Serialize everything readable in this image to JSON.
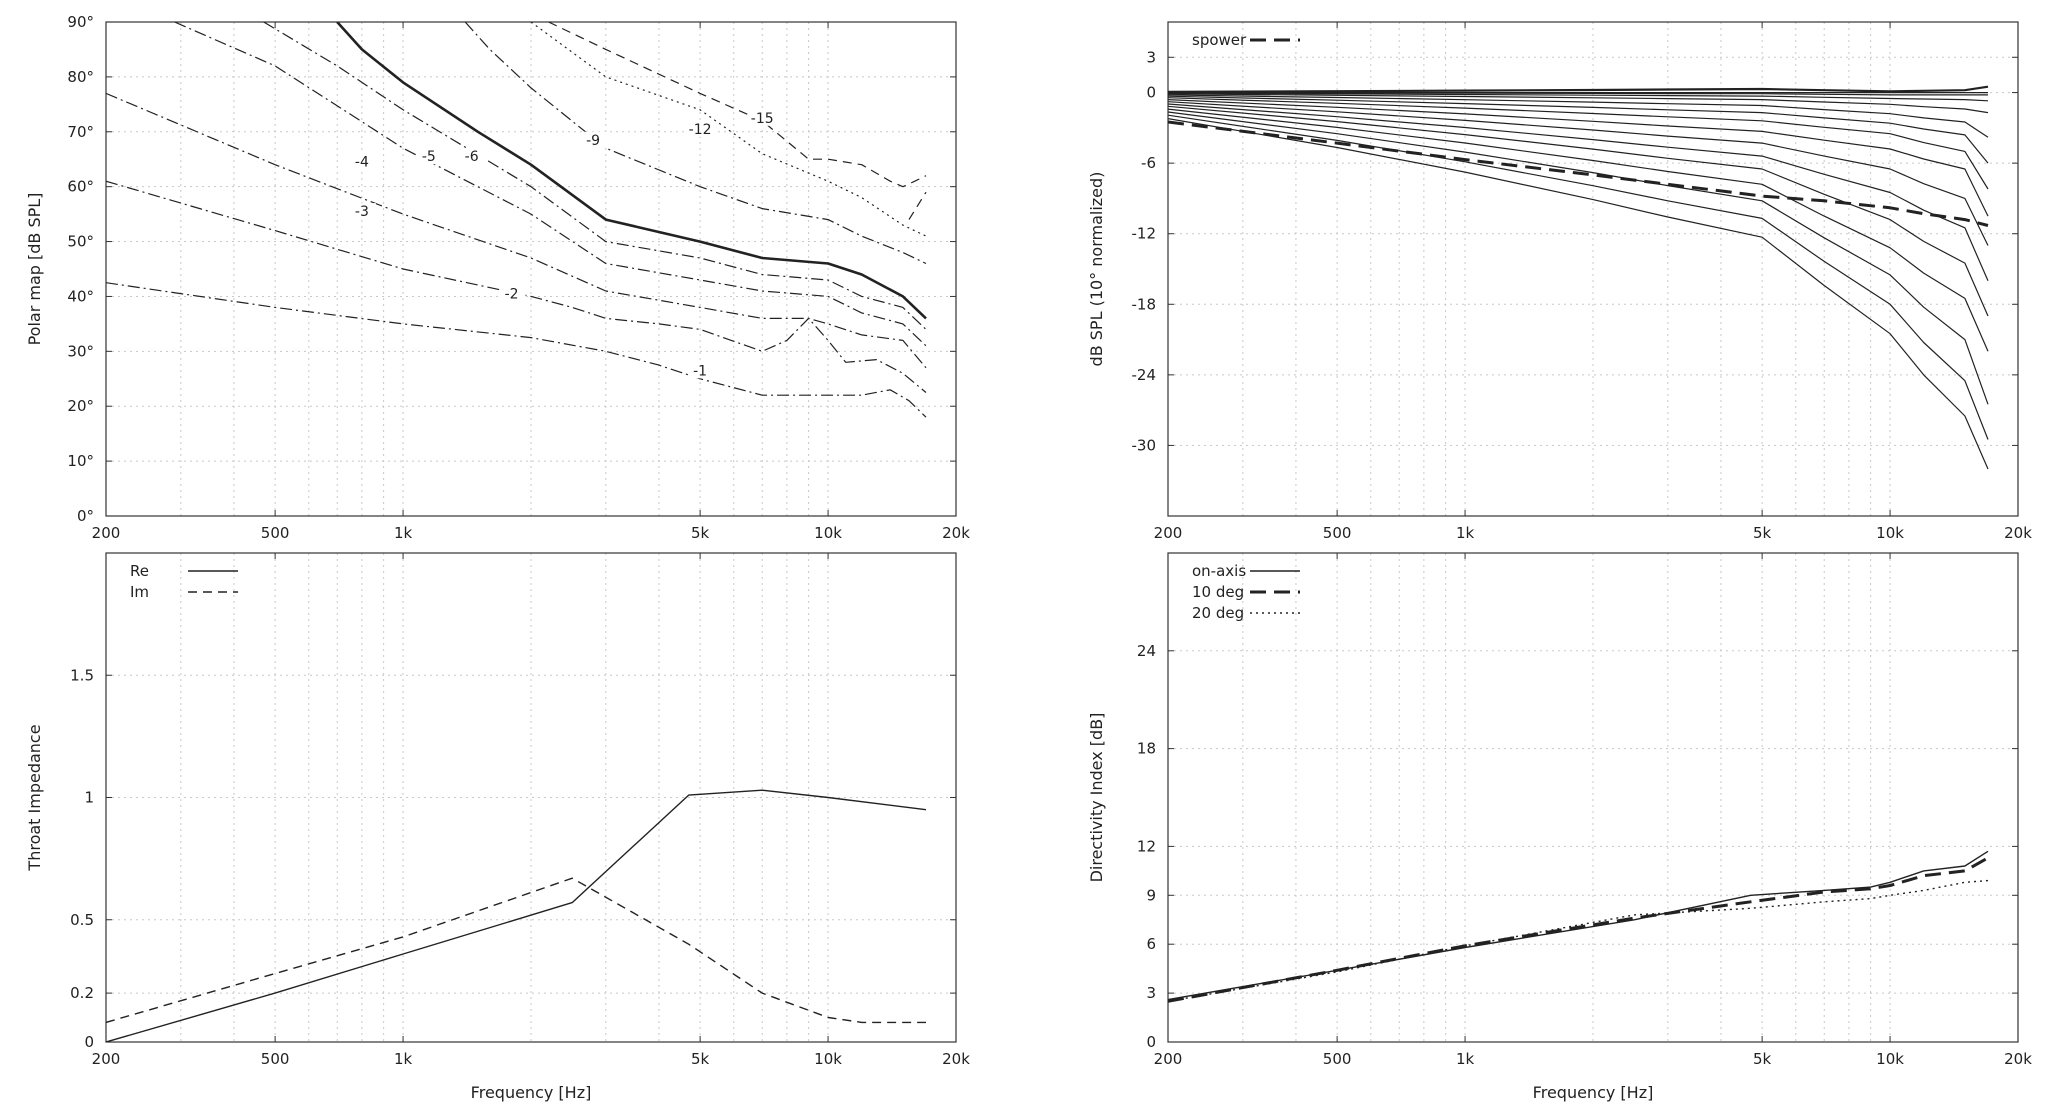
{
  "chart_data": [
    {
      "id": "polar-map",
      "type": "line",
      "xscale": "log",
      "xlim": [
        200,
        20000
      ],
      "ylim": [
        0,
        90
      ],
      "xticks": [
        200,
        500,
        1000,
        5000,
        10000,
        20000
      ],
      "xtick_labels": [
        "200",
        "500",
        "1k",
        "5k",
        "10k",
        "20k"
      ],
      "yticks": [
        0,
        10,
        20,
        30,
        40,
        50,
        60,
        70,
        80,
        90
      ],
      "ytick_labels": [
        "0°",
        "10°",
        "20°",
        "30°",
        "40°",
        "50°",
        "60°",
        "70°",
        "80°",
        "90°"
      ],
      "xlabel": "",
      "ylabel": "Polar map [dB SPL]",
      "grid": true,
      "series": [
        {
          "label": "-1",
          "style": "dashdot",
          "width": 1.2,
          "label_at": [
            5000,
            26
          ],
          "points": [
            [
              200,
              42.5
            ],
            [
              500,
              38
            ],
            [
              1000,
              35
            ],
            [
              2000,
              32.5
            ],
            [
              3000,
              30
            ],
            [
              4000,
              27.5
            ],
            [
              5000,
              25
            ],
            [
              7000,
              22
            ],
            [
              10000,
              22
            ],
            [
              12000,
              22
            ],
            [
              14000,
              23
            ],
            [
              15500,
              21
            ],
            [
              17000,
              18
            ]
          ]
        },
        {
          "label": "-2",
          "style": "dashdot",
          "width": 1.2,
          "label_at": [
            1800,
            40
          ],
          "points": [
            [
              200,
              61
            ],
            [
              500,
              52
            ],
            [
              1000,
              45
            ],
            [
              2000,
              40
            ],
            [
              2500,
              38
            ],
            [
              3000,
              36
            ],
            [
              4000,
              35
            ],
            [
              5000,
              34
            ],
            [
              7000,
              30
            ],
            [
              8000,
              32
            ],
            [
              9000,
              36
            ],
            [
              10000,
              32
            ],
            [
              11000,
              28
            ],
            [
              13000,
              28.5
            ],
            [
              15000,
              26
            ],
            [
              17000,
              22.5
            ]
          ]
        },
        {
          "label": "-3",
          "style": "dashdot",
          "width": 1.2,
          "label_at": [
            800,
            55
          ],
          "points": [
            [
              200,
              77
            ],
            [
              500,
              64
            ],
            [
              1000,
              55
            ],
            [
              2000,
              47
            ],
            [
              3000,
              41
            ],
            [
              5000,
              38
            ],
            [
              7000,
              36
            ],
            [
              9000,
              36
            ],
            [
              10000,
              35
            ],
            [
              12000,
              33
            ],
            [
              15000,
              32
            ],
            [
              17000,
              27
            ]
          ]
        },
        {
          "label": "-4",
          "style": "dashdot",
          "width": 1.2,
          "label_at": [
            800,
            64
          ],
          "points": [
            [
              290,
              90
            ],
            [
              500,
              82
            ],
            [
              1000,
              67
            ],
            [
              2000,
              55
            ],
            [
              3000,
              46
            ],
            [
              5000,
              43
            ],
            [
              7000,
              41
            ],
            [
              10000,
              40
            ],
            [
              12000,
              37
            ],
            [
              15000,
              35
            ],
            [
              17000,
              31
            ]
          ]
        },
        {
          "label": "-5",
          "style": "dashdot",
          "width": 1.2,
          "label_at": [
            1150,
            65
          ],
          "points": [
            [
              470,
              90
            ],
            [
              700,
              82
            ],
            [
              1000,
              74
            ],
            [
              2000,
              60
            ],
            [
              3000,
              50
            ],
            [
              5000,
              47
            ],
            [
              7000,
              44
            ],
            [
              10000,
              43
            ],
            [
              12000,
              40
            ],
            [
              15000,
              38
            ],
            [
              17000,
              34
            ]
          ]
        },
        {
          "label": "-6",
          "style": "solid",
          "width": 2.6,
          "label_at": [
            1450,
            65
          ],
          "points": [
            [
              700,
              90
            ],
            [
              800,
              85
            ],
            [
              1000,
              79
            ],
            [
              1500,
              70
            ],
            [
              2000,
              64
            ],
            [
              3000,
              54
            ],
            [
              5000,
              50
            ],
            [
              7000,
              47
            ],
            [
              10000,
              46
            ],
            [
              12000,
              44
            ],
            [
              15000,
              40
            ],
            [
              17000,
              36
            ]
          ]
        },
        {
          "label": "-9",
          "style": "dashdot",
          "width": 1.2,
          "label_at": [
            2800,
            68
          ],
          "points": [
            [
              1400,
              90
            ],
            [
              1600,
              85
            ],
            [
              2000,
              78
            ],
            [
              3000,
              67
            ],
            [
              5000,
              60
            ],
            [
              7000,
              56
            ],
            [
              10000,
              54
            ],
            [
              12000,
              51
            ],
            [
              15000,
              48
            ],
            [
              17000,
              46
            ]
          ]
        },
        {
          "label": "-12",
          "style": "dashed",
          "width": 1.2,
          "label_at": [
            5000,
            70
          ],
          "points": [
            [
              2200,
              90
            ],
            [
              3000,
              85
            ],
            [
              5000,
              77
            ],
            [
              7000,
              72
            ],
            [
              9000,
              65
            ],
            [
              10000,
              65
            ],
            [
              12000,
              64
            ],
            [
              14000,
              61
            ],
            [
              15000,
              60
            ],
            [
              16000,
              61
            ],
            [
              17000,
              62
            ]
          ]
        },
        {
          "label": "-15",
          "style": "dotted",
          "width": 1.2,
          "label_at": [
            7000,
            72
          ],
          "points": [
            [
              2000,
              90
            ],
            [
              3000,
              80
            ],
            [
              5000,
              74
            ],
            [
              7000,
              66
            ],
            [
              10000,
              61
            ],
            [
              12000,
              58
            ],
            [
              15000,
              53
            ],
            [
              17000,
              51
            ]
          ]
        },
        {
          "label": "",
          "style": "dashed",
          "width": 1.2,
          "points": [
            [
              15500,
              54
            ],
            [
              17000,
              59
            ]
          ]
        }
      ]
    },
    {
      "id": "normalized-spl",
      "type": "line",
      "xscale": "log",
      "xlim": [
        200,
        20000
      ],
      "ylim": [
        -36,
        6
      ],
      "xticks": [
        200,
        500,
        1000,
        5000,
        10000,
        20000
      ],
      "xtick_labels": [
        "200",
        "500",
        "1k",
        "5k",
        "10k",
        "20k"
      ],
      "yticks": [
        3,
        0,
        -6,
        -12,
        -18,
        -24,
        -30
      ],
      "ytick_labels": [
        "3",
        "0",
        "-6",
        "-12",
        "-18",
        "-24",
        "-30"
      ],
      "xlabel": "",
      "ylabel": "dB SPL (10° normalized)",
      "grid": true,
      "legend": {
        "position": "top-left",
        "entries": [
          {
            "label": "spower",
            "style": "dashed-bold"
          }
        ]
      },
      "spower": [
        [
          200,
          -2.5
        ],
        [
          500,
          -4.3
        ],
        [
          1000,
          -5.7
        ],
        [
          2000,
          -7
        ],
        [
          3000,
          -7.8
        ],
        [
          5000,
          -8.8
        ],
        [
          7000,
          -9.2
        ],
        [
          10000,
          -9.8
        ],
        [
          12000,
          -10.3
        ],
        [
          15000,
          -10.8
        ],
        [
          17000,
          -11.3
        ]
      ],
      "series": [
        {
          "v5k": 0.3,
          "v10k": 0.1,
          "v15k": 0.2,
          "end": 0.5,
          "width": 2.2
        },
        {
          "v5k": 0,
          "v10k": 0,
          "v15k": 0,
          "end": 0,
          "width": 1.2
        },
        {
          "v5k": -0.1,
          "v10k": -0.2,
          "v15k": -0.2,
          "end": -0.2,
          "width": 1.2
        },
        {
          "v5k": -0.3,
          "v10k": -0.5,
          "v15k": -0.6,
          "end": -0.7,
          "width": 1.2
        },
        {
          "v5k": -0.6,
          "v10k": -1,
          "v15k": -1.4,
          "end": -1.7,
          "width": 1.2
        },
        {
          "v5k": -1.1,
          "v10k": -1.8,
          "v15k": -2.5,
          "end": -3.8,
          "width": 1.2
        },
        {
          "v5k": -1.7,
          "v10k": -2.6,
          "v15k": -3.6,
          "end": -6,
          "width": 1.2
        },
        {
          "v5k": -2.4,
          "v10k": -3.5,
          "v15k": -5,
          "end": -8.2,
          "width": 1.2
        },
        {
          "v5k": -3.3,
          "v10k": -4.8,
          "v15k": -6.5,
          "end": -10.5,
          "width": 1.2
        },
        {
          "v5k": -4.3,
          "v10k": -6.5,
          "v15k": -9,
          "end": -13,
          "width": 1.2
        },
        {
          "v5k": -5.4,
          "v10k": -8.5,
          "v15k": -11.5,
          "end": -16,
          "width": 1.2
        },
        {
          "v5k": -6.5,
          "v10k": -10.8,
          "v15k": -14.5,
          "end": -19,
          "width": 1.2
        },
        {
          "v5k": -7.8,
          "v10k": -13.2,
          "v15k": -17.5,
          "end": -22,
          "width": 1.2
        },
        {
          "v5k": -9.2,
          "v10k": -15.5,
          "v15k": -21,
          "end": -26.5,
          "width": 1.2
        },
        {
          "v5k": -10.7,
          "v10k": -18,
          "v15k": -24.5,
          "end": -29.5,
          "width": 1.2
        },
        {
          "v5k": -12.3,
          "v10k": -20.5,
          "v15k": -27.5,
          "end": -32,
          "width": 1.2
        }
      ]
    },
    {
      "id": "throat-impedance",
      "type": "line",
      "xscale": "log",
      "xlim": [
        200,
        20000
      ],
      "ylim": [
        0,
        2
      ],
      "xticks": [
        200,
        500,
        1000,
        5000,
        10000,
        20000
      ],
      "xtick_labels": [
        "200",
        "500",
        "1k",
        "5k",
        "10k",
        "20k"
      ],
      "yticks": [
        0,
        0.2,
        0.5,
        1,
        1.5
      ],
      "ytick_labels": [
        "0",
        "0.2",
        "0.5",
        "1",
        "1.5"
      ],
      "xlabel": "Frequency [Hz]",
      "ylabel": "Throat Impedance",
      "grid": true,
      "legend": {
        "position": "top-left",
        "entries": [
          {
            "label": "Re",
            "style": "solid"
          },
          {
            "label": "Im",
            "style": "dashed"
          }
        ]
      },
      "series": [
        {
          "name": "Re",
          "style": "solid",
          "points": [
            [
              200,
              0
            ],
            [
              500,
              0.2
            ],
            [
              1000,
              0.36
            ],
            [
              2500,
              0.57
            ],
            [
              4700,
              1.01
            ],
            [
              7000,
              1.03
            ],
            [
              10000,
              1.0
            ],
            [
              17000,
              0.95
            ]
          ]
        },
        {
          "name": "Im",
          "style": "dashed",
          "points": [
            [
              200,
              0.08
            ],
            [
              500,
              0.28
            ],
            [
              1000,
              0.43
            ],
            [
              2500,
              0.67
            ],
            [
              4700,
              0.4
            ],
            [
              7000,
              0.2
            ],
            [
              10000,
              0.1
            ],
            [
              12000,
              0.08
            ],
            [
              17000,
              0.08
            ]
          ]
        }
      ]
    },
    {
      "id": "directivity-index",
      "type": "line",
      "xscale": "log",
      "xlim": [
        200,
        20000
      ],
      "ylim": [
        0,
        30
      ],
      "xticks": [
        200,
        500,
        1000,
        5000,
        10000,
        20000
      ],
      "xtick_labels": [
        "200",
        "500",
        "1k",
        "5k",
        "10k",
        "20k"
      ],
      "yticks": [
        0,
        3,
        6,
        9,
        12,
        18,
        24
      ],
      "ytick_labels": [
        "0",
        "3",
        "6",
        "9",
        "12",
        "18",
        "24"
      ],
      "xlabel": "Frequency [Hz]",
      "ylabel": "Directivity Index [dB]",
      "grid": true,
      "legend": {
        "position": "top-left",
        "entries": [
          {
            "label": "on-axis",
            "style": "solid"
          },
          {
            "label": "10 deg",
            "style": "dashed-bold"
          },
          {
            "label": "20 deg",
            "style": "dotted"
          }
        ]
      },
      "series": [
        {
          "name": "on-axis",
          "style": "solid",
          "points": [
            [
              200,
              2.6
            ],
            [
              500,
              4.4
            ],
            [
              1000,
              5.8
            ],
            [
              2500,
              7.5
            ],
            [
              4700,
              9.0
            ],
            [
              7000,
              9.3
            ],
            [
              9000,
              9.5
            ],
            [
              10000,
              9.8
            ],
            [
              12000,
              10.5
            ],
            [
              15000,
              10.8
            ],
            [
              17000,
              11.7
            ]
          ]
        },
        {
          "name": "10 deg",
          "style": "dashed-bold",
          "points": [
            [
              200,
              2.5
            ],
            [
              500,
              4.4
            ],
            [
              1000,
              5.9
            ],
            [
              2500,
              7.6
            ],
            [
              4700,
              8.6
            ],
            [
              7000,
              9.2
            ],
            [
              9000,
              9.4
            ],
            [
              10000,
              9.6
            ],
            [
              12000,
              10.2
            ],
            [
              15000,
              10.5
            ],
            [
              17000,
              11.3
            ]
          ]
        },
        {
          "name": "20 deg",
          "style": "dotted",
          "points": [
            [
              200,
              2.5
            ],
            [
              500,
              4.3
            ],
            [
              1000,
              5.9
            ],
            [
              2500,
              7.8
            ],
            [
              4700,
              8.2
            ],
            [
              7000,
              8.6
            ],
            [
              9000,
              8.8
            ],
            [
              10000,
              9.0
            ],
            [
              12000,
              9.3
            ],
            [
              15000,
              9.8
            ],
            [
              17000,
              9.9
            ]
          ]
        }
      ]
    }
  ]
}
